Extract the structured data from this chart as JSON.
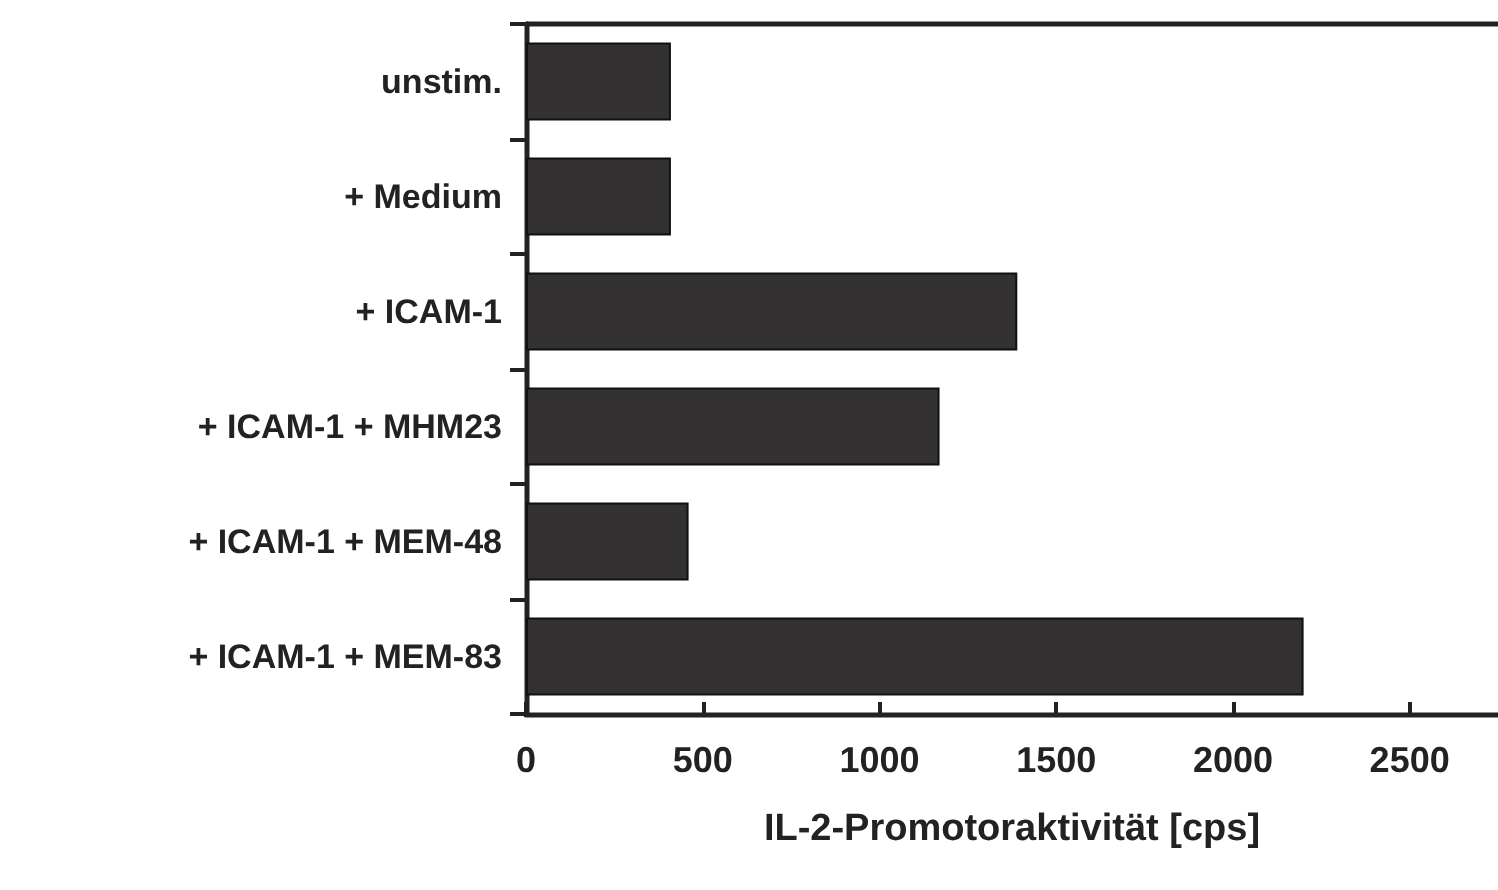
{
  "chart_data": {
    "type": "bar",
    "orientation": "horizontal",
    "xlabel": "IL-2-Promotoraktivität [cps]",
    "categories": [
      "unstim.",
      "+ Medium",
      "+ ICAM-1",
      "+ ICAM-1 + MHM23",
      "+ ICAM-1 + MEM-48",
      "+ ICAM-1 + MEM-83"
    ],
    "values": [
      410,
      410,
      1390,
      1170,
      460,
      2200
    ],
    "color": "#333132",
    "xlim": [
      0,
      2750
    ],
    "xticks": [
      0,
      500,
      1000,
      1500,
      2000,
      2500
    ],
    "grid": false
  }
}
